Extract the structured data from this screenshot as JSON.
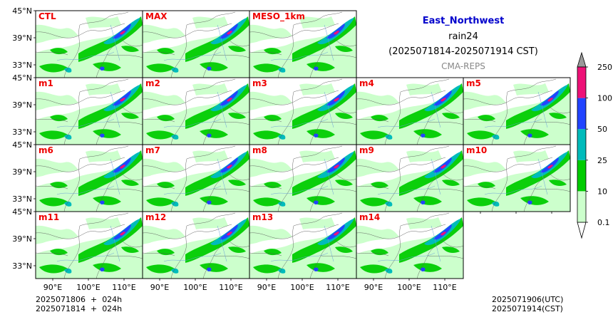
{
  "header": {
    "region": "East_Northwest",
    "variable": "rain24",
    "period": "(2025071814-2025071914 CST)",
    "source": "CMA-REPS"
  },
  "panels": [
    {
      "label": "CTL",
      "row": 0,
      "col": 0
    },
    {
      "label": "MAX",
      "row": 0,
      "col": 1
    },
    {
      "label": "MESO_1km",
      "row": 0,
      "col": 2
    },
    {
      "label": "m1",
      "row": 1,
      "col": 0
    },
    {
      "label": "m2",
      "row": 1,
      "col": 1
    },
    {
      "label": "m3",
      "row": 1,
      "col": 2
    },
    {
      "label": "m4",
      "row": 1,
      "col": 3
    },
    {
      "label": "m5",
      "row": 1,
      "col": 4
    },
    {
      "label": "m6",
      "row": 2,
      "col": 0
    },
    {
      "label": "m7",
      "row": 2,
      "col": 1
    },
    {
      "label": "m8",
      "row": 2,
      "col": 2
    },
    {
      "label": "m9",
      "row": 2,
      "col": 3
    },
    {
      "label": "m10",
      "row": 2,
      "col": 4
    },
    {
      "label": "m11",
      "row": 3,
      "col": 0
    },
    {
      "label": "m12",
      "row": 3,
      "col": 1
    },
    {
      "label": "m13",
      "row": 3,
      "col": 2
    },
    {
      "label": "m14",
      "row": 3,
      "col": 3
    }
  ],
  "axes": {
    "lat_ticks": [
      "45°N",
      "39°N",
      "33°N"
    ],
    "lon_ticks": [
      "90°E",
      "100°E",
      "110°E"
    ]
  },
  "colorbar": {
    "levels": [
      "0.1",
      "10",
      "25",
      "50",
      "100",
      "250"
    ],
    "colors": [
      "#ccffcc",
      "#00cc00",
      "#00bbbb",
      "#2244ff",
      "#ee1177"
    ],
    "under_color": "#ffffff",
    "over_color": "#999999"
  },
  "footer": {
    "left_line1": "2025071806  +  024h",
    "left_line2": "2025071814  +  024h",
    "right_line1": "2025071906(UTC)",
    "right_line2": "2025071914(CST)"
  },
  "colors": {
    "panel_label": "#ee0000",
    "region_title": "#0000cc",
    "source_text": "#888888",
    "land_rain_light": "#ccffcc",
    "rain_green": "#00cc00",
    "rain_cyan": "#00bbbb",
    "rain_blue": "#2244ff",
    "rain_magenta": "#ee1177"
  }
}
